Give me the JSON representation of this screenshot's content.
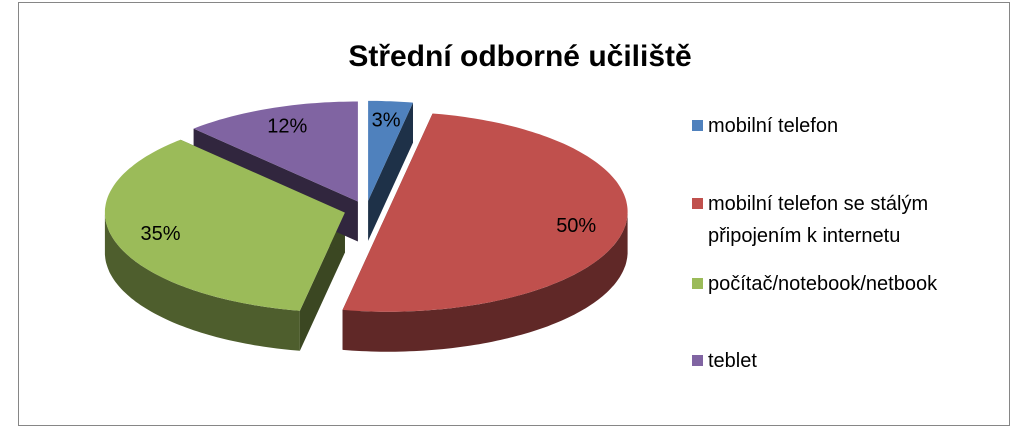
{
  "chart_data": {
    "type": "pie3d",
    "title": "Střední odborné učiliště",
    "categories": [
      "mobilní telefon",
      "mobilní telefon se stálým připojením k internetu",
      "počítač/notebook/netbook",
      "teblet"
    ],
    "values": [
      3,
      50,
      35,
      12
    ],
    "value_labels": [
      "3%",
      "50%",
      "35%",
      "12%"
    ],
    "colors": [
      "#4f81bd",
      "#c0504d",
      "#9bbb59",
      "#8064a2"
    ],
    "legend": "right"
  }
}
